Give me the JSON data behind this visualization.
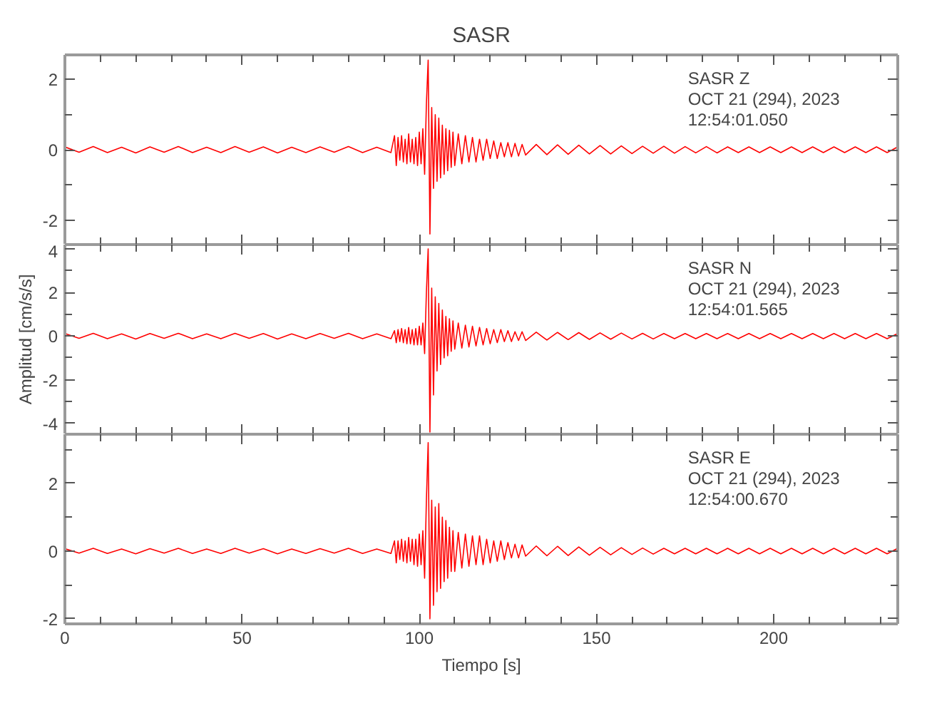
{
  "chart_data": [
    {
      "type": "line",
      "title": "SASR",
      "annotations": [
        "SASR   Z",
        "OCT 21 (294), 2023",
        "12:54:01.050"
      ],
      "tick_labels": "y",
      "xlim": [
        0,
        235
      ],
      "xticks": [
        0,
        {
          "value": 10,
          "label": null
        },
        {
          "value": 20,
          "label": null
        },
        {
          "value": 30,
          "label": null
        },
        {
          "value": 40,
          "label": null
        },
        50,
        {
          "value": 60,
          "label": null
        },
        {
          "value": 70,
          "label": null
        },
        {
          "value": 80,
          "label": null
        },
        {
          "value": 90,
          "label": null
        },
        100,
        {
          "value": 110,
          "label": null
        },
        {
          "value": 120,
          "label": null
        },
        {
          "value": 130,
          "label": null
        },
        {
          "value": 140,
          "label": null
        },
        150,
        {
          "value": 160,
          "label": null
        },
        {
          "value": 170,
          "label": null
        },
        {
          "value": 180,
          "label": null
        },
        {
          "value": 190,
          "label": null
        },
        200,
        {
          "value": 210,
          "label": null
        },
        {
          "value": 220,
          "label": null
        },
        {
          "value": 230,
          "label": null
        }
      ],
      "ylim": [
        -2.7,
        2.7
      ],
      "yticks": [
        -2,
        {
          "value": -1,
          "label": null
        },
        0,
        {
          "value": 1,
          "label": null
        },
        2
      ],
      "marker": "none",
      "line_style": "solid",
      "x": [
        0,
        4,
        8,
        12,
        16,
        20,
        24,
        28,
        32,
        36,
        40,
        44,
        48,
        52,
        56,
        60,
        64,
        68,
        72,
        76,
        80,
        84,
        88,
        92,
        93,
        93.5,
        94,
        94.5,
        95,
        95.5,
        96,
        96.5,
        97,
        97.5,
        98,
        98.5,
        99,
        99.5,
        100,
        100.5,
        101,
        101.5,
        102,
        102.5,
        103,
        103.5,
        104,
        104.5,
        105,
        105.5,
        106,
        106.5,
        107,
        107.5,
        108,
        108.5,
        109,
        109.5,
        110,
        111,
        112,
        113,
        114,
        115,
        116,
        117,
        118,
        119,
        120,
        121,
        122,
        123,
        124,
        125,
        126,
        127,
        128,
        129,
        130,
        133,
        136,
        139,
        142,
        145,
        148,
        151,
        154,
        157,
        160,
        163,
        166,
        169,
        172,
        175,
        178,
        181,
        184,
        187,
        190,
        193,
        196,
        199,
        202,
        205,
        208,
        211,
        214,
        217,
        220,
        223,
        226,
        229,
        232,
        235
      ],
      "series": [
        {
          "color": "#ff0000",
          "values": [
            0.08,
            -0.07,
            0.09,
            -0.08,
            0.07,
            -0.09,
            0.08,
            -0.07,
            0.09,
            -0.08,
            0.07,
            -0.08,
            0.09,
            -0.07,
            0.08,
            -0.09,
            0.07,
            -0.08,
            0.08,
            -0.07,
            0.09,
            -0.08,
            0.07,
            -0.08,
            0.4,
            -0.45,
            0.35,
            -0.3,
            0.4,
            -0.35,
            0.3,
            -0.4,
            0.45,
            -0.35,
            0.3,
            -0.4,
            0.35,
            -0.45,
            0.5,
            -0.4,
            0.6,
            -0.7,
            1.3,
            2.55,
            -2.4,
            1.2,
            -1.1,
            1.0,
            -0.9,
            0.9,
            -0.8,
            0.7,
            -0.7,
            0.6,
            -0.6,
            0.55,
            -0.5,
            0.5,
            -0.45,
            0.45,
            -0.4,
            0.4,
            -0.35,
            0.35,
            -0.35,
            0.3,
            -0.3,
            0.3,
            -0.25,
            0.25,
            -0.25,
            0.2,
            -0.2,
            0.2,
            -0.2,
            0.18,
            -0.18,
            0.15,
            -0.15,
            0.15,
            -0.14,
            0.14,
            -0.13,
            0.13,
            -0.12,
            0.12,
            -0.12,
            0.11,
            -0.11,
            0.1,
            -0.1,
            0.1,
            -0.1,
            0.09,
            -0.09,
            0.09,
            -0.09,
            0.08,
            -0.08,
            0.08,
            -0.08,
            0.08,
            -0.08,
            0.08,
            -0.08,
            0.08,
            -0.08,
            0.08,
            -0.08,
            0.08,
            -0.08,
            0.08,
            -0.08,
            0.08
          ]
        }
      ]
    },
    {
      "type": "line",
      "ylabel": "Amplitud [cm/s/s]",
      "annotations": [
        "SASR   N",
        "OCT 21 (294), 2023",
        "12:54:01.565"
      ],
      "tick_labels": "y",
      "xlim": [
        0,
        235
      ],
      "xticks": [
        0,
        {
          "value": 10,
          "label": null
        },
        {
          "value": 20,
          "label": null
        },
        {
          "value": 30,
          "label": null
        },
        {
          "value": 40,
          "label": null
        },
        50,
        {
          "value": 60,
          "label": null
        },
        {
          "value": 70,
          "label": null
        },
        {
          "value": 80,
          "label": null
        },
        {
          "value": 90,
          "label": null
        },
        100,
        {
          "value": 110,
          "label": null
        },
        {
          "value": 120,
          "label": null
        },
        {
          "value": 130,
          "label": null
        },
        {
          "value": 140,
          "label": null
        },
        150,
        {
          "value": 160,
          "label": null
        },
        {
          "value": 170,
          "label": null
        },
        {
          "value": 180,
          "label": null
        },
        {
          "value": 190,
          "label": null
        },
        200,
        {
          "value": 210,
          "label": null
        },
        {
          "value": 220,
          "label": null
        },
        {
          "value": 230,
          "label": null
        }
      ],
      "ylim": [
        -4.5,
        4.2
      ],
      "yticks": [
        -4,
        {
          "value": -3,
          "label": null
        },
        -2,
        {
          "value": -1,
          "label": null
        },
        0,
        {
          "value": 1,
          "label": null
        },
        2,
        {
          "value": 3,
          "label": null
        },
        4
      ],
      "marker": "none",
      "line_style": "solid",
      "x": [
        0,
        4,
        8,
        12,
        16,
        20,
        24,
        28,
        32,
        36,
        40,
        44,
        48,
        52,
        56,
        60,
        64,
        68,
        72,
        76,
        80,
        84,
        88,
        92,
        93,
        93.5,
        94,
        94.5,
        95,
        95.5,
        96,
        96.5,
        97,
        97.5,
        98,
        98.5,
        99,
        99.5,
        100,
        100.5,
        101,
        101.5,
        102,
        102.5,
        103,
        103.5,
        104,
        104.5,
        105,
        105.5,
        106,
        106.5,
        107,
        107.5,
        108,
        108.5,
        109,
        109.5,
        110,
        111,
        112,
        113,
        114,
        115,
        116,
        117,
        118,
        119,
        120,
        121,
        122,
        123,
        124,
        125,
        126,
        127,
        128,
        129,
        130,
        133,
        136,
        139,
        142,
        145,
        148,
        151,
        154,
        157,
        160,
        163,
        166,
        169,
        172,
        175,
        178,
        181,
        184,
        187,
        190,
        193,
        196,
        199,
        202,
        205,
        208,
        211,
        214,
        217,
        220,
        223,
        226,
        229,
        232,
        235
      ],
      "series": [
        {
          "color": "#ff0000",
          "values": [
            0.12,
            -0.1,
            0.13,
            -0.12,
            0.1,
            -0.13,
            0.12,
            -0.1,
            0.13,
            -0.12,
            0.1,
            -0.12,
            0.13,
            -0.1,
            0.12,
            -0.13,
            0.1,
            -0.12,
            0.12,
            -0.1,
            0.13,
            -0.12,
            0.1,
            -0.12,
            0.25,
            -0.3,
            0.3,
            -0.25,
            0.35,
            -0.3,
            0.3,
            -0.35,
            0.4,
            -0.35,
            0.3,
            -0.4,
            0.35,
            -0.4,
            0.45,
            -0.4,
            0.6,
            -0.8,
            2.0,
            4.0,
            -4.4,
            2.2,
            -2.7,
            1.8,
            -1.6,
            1.5,
            -1.3,
            1.2,
            -1.0,
            0.9,
            -0.9,
            0.8,
            -0.7,
            0.7,
            -0.6,
            0.6,
            -0.55,
            0.5,
            -0.5,
            0.45,
            -0.45,
            0.4,
            -0.4,
            0.35,
            -0.35,
            0.3,
            -0.3,
            0.3,
            -0.25,
            0.25,
            -0.25,
            0.2,
            -0.2,
            0.2,
            -0.2,
            0.18,
            -0.18,
            0.17,
            -0.16,
            0.16,
            -0.15,
            0.15,
            -0.14,
            0.14,
            -0.13,
            0.13,
            -0.13,
            0.12,
            -0.12,
            0.12,
            -0.12,
            0.12,
            -0.12,
            0.12,
            -0.12,
            0.12,
            -0.12,
            0.12,
            -0.12,
            0.12,
            -0.12,
            0.12,
            -0.12,
            0.12,
            -0.12,
            0.12,
            -0.12,
            0.12,
            -0.12,
            0.12
          ]
        }
      ]
    },
    {
      "type": "line",
      "xlabel": "Tiempo [s]",
      "annotations": [
        "SASR   E",
        "OCT 21 (294), 2023",
        "12:54:00.670"
      ],
      "xlim": [
        0,
        235
      ],
      "xticks": [
        0,
        {
          "value": 10,
          "label": null
        },
        {
          "value": 20,
          "label": null
        },
        {
          "value": 30,
          "label": null
        },
        {
          "value": 40,
          "label": null
        },
        50,
        {
          "value": 60,
          "label": null
        },
        {
          "value": 70,
          "label": null
        },
        {
          "value": 80,
          "label": null
        },
        {
          "value": 90,
          "label": null
        },
        100,
        {
          "value": 110,
          "label": null
        },
        {
          "value": 120,
          "label": null
        },
        {
          "value": 130,
          "label": null
        },
        {
          "value": 140,
          "label": null
        },
        150,
        {
          "value": 160,
          "label": null
        },
        {
          "value": 170,
          "label": null
        },
        {
          "value": 180,
          "label": null
        },
        {
          "value": 190,
          "label": null
        },
        200,
        {
          "value": 210,
          "label": null
        },
        {
          "value": 220,
          "label": null
        },
        {
          "value": 230,
          "label": null
        }
      ],
      "ylim": [
        -2.15,
        3.45
      ],
      "yticks": [
        -2,
        {
          "value": -1,
          "label": null
        },
        0,
        {
          "value": 1,
          "label": null
        },
        2,
        {
          "value": 3,
          "label": null
        }
      ],
      "marker": "none",
      "line_style": "solid",
      "x": [
        0,
        4,
        8,
        12,
        16,
        20,
        24,
        28,
        32,
        36,
        40,
        44,
        48,
        52,
        56,
        60,
        64,
        68,
        72,
        76,
        80,
        84,
        88,
        92,
        93,
        93.5,
        94,
        94.5,
        95,
        95.5,
        96,
        96.5,
        97,
        97.5,
        98,
        98.5,
        99,
        99.5,
        100,
        100.5,
        101,
        101.5,
        102,
        102.5,
        103,
        103.5,
        104,
        104.5,
        105,
        105.5,
        106,
        106.5,
        107,
        107.5,
        108,
        108.5,
        109,
        109.5,
        110,
        111,
        112,
        113,
        114,
        115,
        116,
        117,
        118,
        119,
        120,
        121,
        122,
        123,
        124,
        125,
        126,
        127,
        128,
        129,
        130,
        133,
        136,
        139,
        142,
        145,
        148,
        151,
        154,
        157,
        160,
        163,
        166,
        169,
        172,
        175,
        178,
        181,
        184,
        187,
        190,
        193,
        196,
        199,
        202,
        205,
        208,
        211,
        214,
        217,
        220,
        223,
        226,
        229,
        232,
        235
      ],
      "series": [
        {
          "color": "#ff0000",
          "values": [
            0.07,
            -0.06,
            0.08,
            -0.07,
            0.06,
            -0.08,
            0.07,
            -0.06,
            0.08,
            -0.07,
            0.06,
            -0.07,
            0.08,
            -0.06,
            0.07,
            -0.08,
            0.06,
            -0.07,
            0.07,
            -0.06,
            0.08,
            -0.07,
            0.06,
            -0.07,
            0.3,
            -0.35,
            0.3,
            -0.25,
            0.35,
            -0.3,
            0.3,
            -0.35,
            0.4,
            -0.3,
            0.35,
            -0.4,
            0.35,
            -0.45,
            0.5,
            -0.4,
            0.6,
            -0.8,
            1.5,
            3.2,
            -2.0,
            1.5,
            -1.6,
            1.3,
            -1.2,
            1.4,
            -1.1,
            1.0,
            -0.9,
            0.9,
            -0.8,
            0.7,
            -0.6,
            0.6,
            -0.6,
            0.55,
            -0.5,
            0.5,
            -0.45,
            0.45,
            -0.4,
            0.45,
            -0.4,
            0.35,
            -0.35,
            0.3,
            -0.3,
            0.3,
            -0.25,
            0.25,
            -0.2,
            0.2,
            -0.2,
            0.18,
            -0.15,
            0.15,
            -0.14,
            0.14,
            -0.13,
            0.12,
            -0.12,
            0.11,
            -0.11,
            0.1,
            -0.1,
            0.09,
            -0.09,
            0.08,
            -0.08,
            0.08,
            -0.08,
            0.08,
            -0.08,
            0.08,
            -0.08,
            0.08,
            -0.08,
            0.08,
            -0.08,
            0.08,
            -0.08,
            0.08,
            -0.08,
            0.08,
            -0.08,
            0.08,
            -0.08,
            0.08,
            -0.08,
            0.08
          ]
        }
      ]
    }
  ]
}
